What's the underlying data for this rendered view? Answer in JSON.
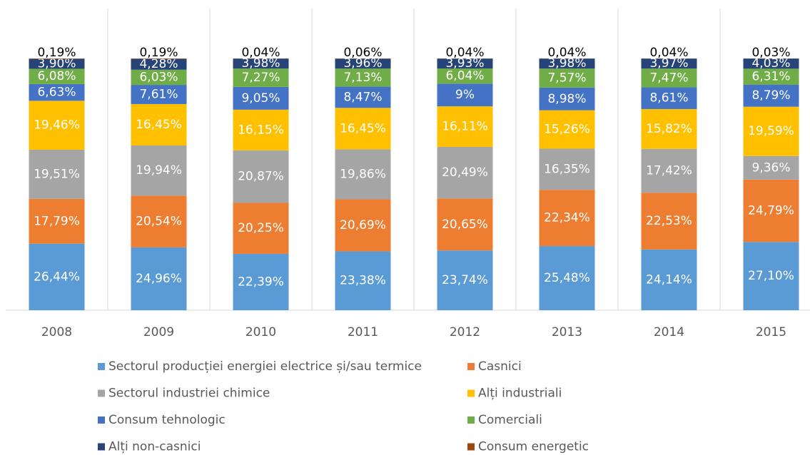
{
  "chart_data": {
    "type": "stacked_bar",
    "categories": [
      "2008",
      "2009",
      "2010",
      "2011",
      "2012",
      "2013",
      "2014",
      "2015"
    ],
    "series": [
      {
        "name": "Sectorul producției energiei electrice și/sau termice",
        "color": "#5b9bd5",
        "values": [
          26.44,
          24.96,
          22.39,
          23.38,
          23.74,
          25.48,
          24.14,
          27.1
        ],
        "value_labels": [
          "26,44%",
          "24,96%",
          "22,39%",
          "23,38%",
          "23,74%",
          "25,48%",
          "24,14%",
          "27,10%"
        ]
      },
      {
        "name": "Casnici",
        "color": "#ed7d31",
        "values": [
          17.79,
          20.54,
          20.25,
          20.69,
          20.65,
          22.34,
          22.53,
          24.79
        ],
        "value_labels": [
          "17,79%",
          "20,54%",
          "20,25%",
          "20,69%",
          "20,65%",
          "22,34%",
          "22,53%",
          "24,79%"
        ]
      },
      {
        "name": "Sectorul industriei chimice",
        "color": "#a5a5a5",
        "values": [
          19.51,
          19.94,
          20.87,
          19.86,
          20.49,
          16.35,
          17.42,
          9.36
        ],
        "value_labels": [
          "19,51%",
          "19,94%",
          "20,87%",
          "19,86%",
          "20,49%",
          "16,35%",
          "17,42%",
          "9,36%"
        ]
      },
      {
        "name": "Alți industriali",
        "color": "#ffc000",
        "values": [
          19.46,
          16.45,
          16.15,
          16.45,
          16.11,
          15.26,
          15.82,
          19.59
        ],
        "value_labels": [
          "19,46%",
          "16,45%",
          "16,15%",
          "16,45%",
          "16,11%",
          "15,26%",
          "15,82%",
          "19,59%"
        ]
      },
      {
        "name": "Consum tehnologic",
        "color": "#4472c4",
        "values": [
          6.63,
          7.61,
          9.05,
          8.47,
          9,
          8.98,
          8.61,
          8.79
        ],
        "value_labels": [
          "6,63%",
          "7,61%",
          "9,05%",
          "8,47%",
          "9%",
          "8,98%",
          "8,61%",
          "8,79%"
        ]
      },
      {
        "name": "Comerciali",
        "color": "#70ad47",
        "values": [
          6.08,
          6.03,
          7.27,
          7.13,
          6.04,
          7.57,
          7.47,
          6.31
        ],
        "value_labels": [
          "6,08%",
          "6,03%",
          "7,27%",
          "7,13%",
          "6,04%",
          "7,57%",
          "7,47%",
          "6,31%"
        ]
      },
      {
        "name": "Alți non-casnici",
        "color": "#264478",
        "values": [
          3.9,
          4.28,
          3.98,
          3.96,
          3.93,
          3.98,
          3.97,
          4.03
        ],
        "value_labels": [
          "3,90%",
          "4,28%",
          "3,98%",
          "3,96%",
          "3,93%",
          "3,98%",
          "3,97%",
          "4,03%"
        ]
      },
      {
        "name": "Consum energetic",
        "color": "#9e480e",
        "values": [
          0.19,
          0.19,
          0.04,
          0.06,
          0.04,
          0.04,
          0.04,
          0.03
        ],
        "value_labels": [
          "0,19%",
          "0,19%",
          "0,04%",
          "0,06%",
          "0,04%",
          "0,04%",
          "0,04%",
          "0,03%"
        ]
      }
    ]
  }
}
